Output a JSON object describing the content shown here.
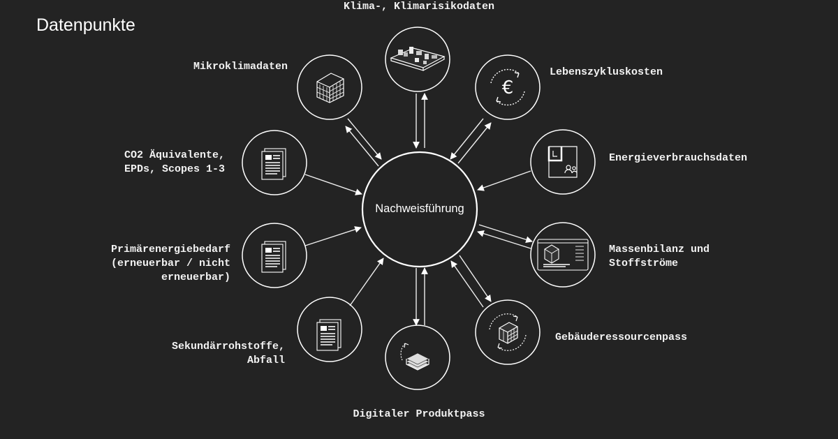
{
  "title": "Datenpunkte",
  "hub": "Nachweisführung",
  "nodes": {
    "klima": "Klima-, Klimarisikodaten",
    "mikro": "Mikroklimadaten",
    "lebens": "Lebenszykluskosten",
    "co2": "CO2 Äquivalente,\nEPDs, Scopes 1-3",
    "energie": "Energieverbrauchsdaten",
    "primaer": "Primärenergiebedarf\n(erneuerbar / nicht\nerneuerbar)",
    "massen": "Massenbilanz und\nStoffströme",
    "sekundaer": "Sekundärrohstoffe,\nAbfall",
    "gebaeude": "Gebäuderessourcenpass",
    "produkt": "Digitaler Produktpass"
  },
  "icons": {
    "klima": "city-model-icon",
    "mikro": "building-icon",
    "lebens": "euro-cycle-icon",
    "co2": "document-icon",
    "energie": "floorplan-users-icon",
    "primaer": "document-icon",
    "massen": "dashboard-icon",
    "sekundaer": "document-icon",
    "gebaeude": "building-cycle-icon",
    "produkt": "material-stack-icon"
  },
  "colors": {
    "background": "#232323",
    "line": "#ffffff"
  }
}
